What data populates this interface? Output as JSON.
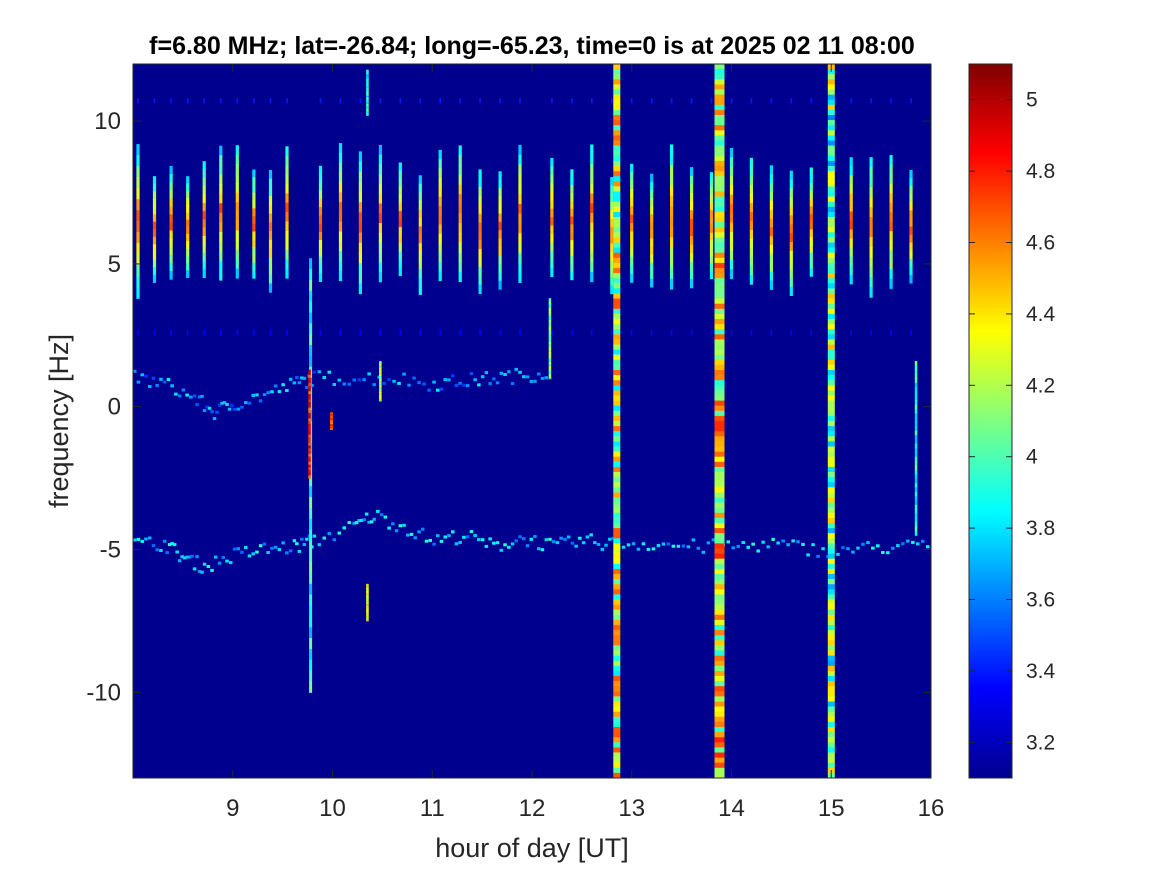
{
  "chart_data": {
    "type": "heatmap",
    "title": "f=6.80 MHz;  lat=-26.84; long=-65.23, time=0 is at 2025 02 11 08:00",
    "xlabel": "hour of day [UT]",
    "ylabel": "frequency [Hz]",
    "xlim": [
      8,
      16
    ],
    "ylim": [
      -13,
      12
    ],
    "xticks": [
      9,
      10,
      11,
      12,
      13,
      14,
      15,
      16
    ],
    "yticks": [
      10,
      5,
      0,
      -5,
      -10
    ],
    "colormap": "jet",
    "background_color": "#00008f",
    "colorbar": {
      "clim": [
        3.1,
        5.1
      ],
      "ticks": [
        5,
        4.8,
        4.6,
        4.4,
        4.2,
        4,
        3.8,
        3.6,
        3.4,
        3.2
      ]
    },
    "features": {
      "broadband_bursts": [
        {
          "hour": 12.85,
          "intensity": 4.3
        },
        {
          "hour": 13.88,
          "intensity": 4.4
        },
        {
          "hour": 15.0,
          "intensity": 4.1
        }
      ],
      "doppler_trace_upper": [
        [
          8.0,
          1.0
        ],
        [
          8.3,
          0.8
        ],
        [
          8.6,
          0.3
        ],
        [
          8.8,
          -0.2
        ],
        [
          9.0,
          0.1
        ],
        [
          9.3,
          0.4
        ],
        [
          9.6,
          0.8
        ],
        [
          9.8,
          1.0
        ],
        [
          10.2,
          1.0
        ],
        [
          10.6,
          1.0
        ],
        [
          11.0,
          0.8
        ],
        [
          11.3,
          0.9
        ],
        [
          11.6,
          1.0
        ],
        [
          11.9,
          1.1
        ],
        [
          12.2,
          1.2
        ]
      ],
      "doppler_trace_lower": [
        [
          8.0,
          -4.8
        ],
        [
          8.3,
          -4.8
        ],
        [
          8.5,
          -5.3
        ],
        [
          8.7,
          -5.6
        ],
        [
          9.0,
          -5.2
        ],
        [
          9.3,
          -5.0
        ],
        [
          9.6,
          -4.9
        ],
        [
          9.8,
          -4.7
        ],
        [
          10.2,
          -4.2
        ],
        [
          10.4,
          -3.8
        ],
        [
          10.7,
          -4.2
        ],
        [
          11.0,
          -4.7
        ],
        [
          11.3,
          -4.5
        ],
        [
          11.6,
          -4.9
        ],
        [
          11.9,
          -4.6
        ],
        [
          12.2,
          -4.9
        ],
        [
          12.5,
          -4.7
        ],
        [
          12.8,
          -4.8
        ],
        [
          13.2,
          -4.8
        ],
        [
          13.6,
          -4.9
        ],
        [
          14.0,
          -4.9
        ],
        [
          14.4,
          -4.8
        ],
        [
          14.8,
          -5.0
        ],
        [
          15.2,
          -5.0
        ],
        [
          15.6,
          -4.9
        ],
        [
          16.0,
          -4.9
        ]
      ]
    }
  }
}
